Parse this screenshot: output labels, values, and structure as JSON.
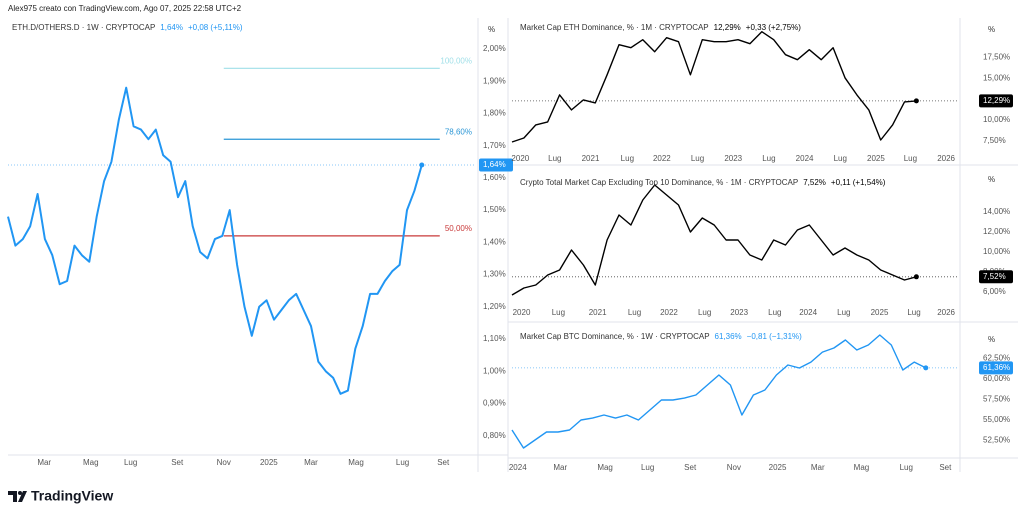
{
  "header": "Alex975 creato con TradingView.com, Ago 07, 2025 22:58 UTC+2",
  "brand": "TradingView",
  "chart_data": [
    {
      "type": "line",
      "legend_symbol": "ETH.D/OTHERS.D · 1W · CRYPTOCAP",
      "legend_value": "1,64%",
      "legend_change": "+0,08 (+5,11%)",
      "color": "#2196f3",
      "y_unit": "%",
      "values": [
        1.48,
        1.39,
        1.41,
        1.45,
        1.55,
        1.41,
        1.36,
        1.27,
        1.28,
        1.39,
        1.36,
        1.34,
        1.48,
        1.59,
        1.65,
        1.78,
        1.88,
        1.76,
        1.75,
        1.72,
        1.75,
        1.67,
        1.65,
        1.54,
        1.59,
        1.45,
        1.37,
        1.35,
        1.41,
        1.42,
        1.5,
        1.33,
        1.2,
        1.11,
        1.2,
        1.22,
        1.16,
        1.19,
        1.22,
        1.24,
        1.19,
        1.14,
        1.03,
        1.0,
        0.98,
        0.93,
        0.94,
        1.07,
        1.14,
        1.24,
        1.24,
        1.28,
        1.31,
        1.33,
        1.5,
        1.56,
        1.64
      ],
      "xlim": [
        0,
        63.2
      ],
      "xticks": [
        {
          "value": 4.9,
          "label": "Mar"
        },
        {
          "value": 11.2,
          "label": "Mag"
        },
        {
          "value": 16.6,
          "label": "Lug"
        },
        {
          "value": 22.9,
          "label": "Set"
        },
        {
          "value": 29.2,
          "label": "Nov"
        },
        {
          "value": 35.3,
          "label": "2025"
        },
        {
          "value": 41,
          "label": "Mar"
        },
        {
          "value": 47.1,
          "label": "Mag"
        },
        {
          "value": 53.4,
          "label": "Lug"
        },
        {
          "value": 58.9,
          "label": "Set"
        }
      ],
      "ylim": [
        0.74,
        2.09
      ],
      "yticks": [
        {
          "value": 2.0,
          "label": "2,00%"
        },
        {
          "value": 1.9,
          "label": "1,90%"
        },
        {
          "value": 1.8,
          "label": "1,80%"
        },
        {
          "value": 1.7,
          "label": "1,70%"
        },
        {
          "value": 1.6,
          "label": "1,60%"
        },
        {
          "value": 1.5,
          "label": "1,50%"
        },
        {
          "value": 1.4,
          "label": "1,40%"
        },
        {
          "value": 1.3,
          "label": "1,30%"
        },
        {
          "value": 1.2,
          "label": "1,20%"
        },
        {
          "value": 1.1,
          "label": "1,10%"
        },
        {
          "value": 1.0,
          "label": "1,00%"
        },
        {
          "value": 0.9,
          "label": "0,90%"
        },
        {
          "value": 0.8,
          "label": "0,80%"
        }
      ],
      "levels": [
        {
          "value": 1.94,
          "label": "100,00%",
          "color": "#9fdfe8"
        },
        {
          "value": 1.72,
          "label": "78,60%",
          "color": "#2a96d6"
        },
        {
          "value": 1.42,
          "label": "50,00%",
          "color": "#c93a3a"
        }
      ],
      "levels_start": 29.2
    },
    {
      "type": "line",
      "legend_symbol": "Market Cap ETH Dominance, % · 1M · CRYPTOCAP",
      "legend_value": "12,29%",
      "legend_change": "+0,33 (+2,75%)",
      "color": "#000000",
      "y_unit": "%",
      "values": [
        7.35,
        7.83,
        9.4,
        9.76,
        13.01,
        11.2,
        12.41,
        12.05,
        15.42,
        19.04,
        18.67,
        19.64,
        18.19,
        19.88,
        19.4,
        15.42,
        19.64,
        19.4,
        19.4,
        19.64,
        19.16,
        20.6,
        19.64,
        17.83,
        17.23,
        18.43,
        17.23,
        18.67,
        15.06,
        13.01,
        11.2,
        7.59,
        9.4,
        12.17,
        12.29
      ],
      "xlim": [
        0,
        37.5
      ],
      "xticks": [
        {
          "value": 0.7,
          "label": "2020"
        },
        {
          "value": 3.6,
          "label": "Lug"
        },
        {
          "value": 6.6,
          "label": "2021"
        },
        {
          "value": 9.7,
          "label": "Lug"
        },
        {
          "value": 12.6,
          "label": "2022"
        },
        {
          "value": 15.6,
          "label": "Lug"
        },
        {
          "value": 18.6,
          "label": "2023"
        },
        {
          "value": 21.6,
          "label": "Lug"
        },
        {
          "value": 24.6,
          "label": "2024"
        },
        {
          "value": 27.6,
          "label": "Lug"
        },
        {
          "value": 30.6,
          "label": "2025"
        },
        {
          "value": 33.5,
          "label": "Lug"
        },
        {
          "value": 36.5,
          "label": "2026"
        }
      ],
      "ylim": [
        6.39,
        22.0
      ],
      "yticks": [
        {
          "value": 17.5,
          "label": "17,50%"
        },
        {
          "value": 15,
          "label": "15,00%"
        },
        {
          "value": 10,
          "label": "10,00%"
        },
        {
          "value": 7.5,
          "label": "7,50%"
        }
      ]
    },
    {
      "type": "line",
      "legend_symbol": "Crypto Total Market Cap Excluding Top 10 Dominance, % · 1M · CRYPTOCAP",
      "legend_value": "7,52%",
      "legend_change": "+0,11 (+1,54%)",
      "color": "#000000",
      "y_unit": "%",
      "values": [
        5.7,
        6.4,
        6.7,
        7.7,
        8.2,
        10.2,
        8.7,
        6.7,
        11.2,
        13.7,
        12.7,
        15.2,
        16.7,
        15.7,
        14.7,
        12.0,
        13.4,
        12.7,
        11.2,
        11.2,
        9.7,
        9.2,
        11.2,
        10.7,
        12.2,
        12.7,
        11.2,
        9.7,
        10.4,
        9.7,
        9.2,
        8.2,
        7.7,
        7.2,
        7.52
      ],
      "xlim": [
        0,
        37.5
      ],
      "xticks": [
        {
          "value": 0.8,
          "label": "2020"
        },
        {
          "value": 3.9,
          "label": "Lug"
        },
        {
          "value": 7.2,
          "label": "2021"
        },
        {
          "value": 10.3,
          "label": "Lug"
        },
        {
          "value": 13.2,
          "label": "2022"
        },
        {
          "value": 16.2,
          "label": "Lug"
        },
        {
          "value": 19.1,
          "label": "2023"
        },
        {
          "value": 22.1,
          "label": "Lug"
        },
        {
          "value": 24.9,
          "label": "2024"
        },
        {
          "value": 27.9,
          "label": "Lug"
        },
        {
          "value": 30.9,
          "label": "2025"
        },
        {
          "value": 33.8,
          "label": "Lug"
        },
        {
          "value": 36.5,
          "label": "2026"
        }
      ],
      "ylim": [
        4.7,
        18.2
      ],
      "yticks": [
        {
          "value": 14,
          "label": "14,00%"
        },
        {
          "value": 12,
          "label": "12,00%"
        },
        {
          "value": 10,
          "label": "10,00%"
        },
        {
          "value": 8,
          "label": "8,00%"
        },
        {
          "value": 6,
          "label": "6,00%"
        }
      ]
    },
    {
      "type": "line",
      "legend_symbol": "Market Cap BTC Dominance, % · 1W · CRYPTOCAP",
      "legend_value": "61,36%",
      "legend_change": "−0,81 (−1,31%)",
      "color": "#2196f3",
      "y_unit": "%",
      "values": [
        53.78,
        51.59,
        52.56,
        53.54,
        53.54,
        53.78,
        55.0,
        55.24,
        55.61,
        55.24,
        55.61,
        55.0,
        56.22,
        57.44,
        57.44,
        57.68,
        58.05,
        59.27,
        60.49,
        59.27,
        55.61,
        58.05,
        58.66,
        60.49,
        61.71,
        61.34,
        62.07,
        63.29,
        63.78,
        64.76,
        63.54,
        64.15,
        65.37,
        64.15,
        61.1,
        62.07,
        61.36
      ],
      "xlim": [
        0,
        38.8
      ],
      "xticks": [
        {
          "value": 0.5,
          "label": "2024"
        },
        {
          "value": 4.2,
          "label": "Mar"
        },
        {
          "value": 8.1,
          "label": "Mag"
        },
        {
          "value": 11.8,
          "label": "Lug"
        },
        {
          "value": 15.5,
          "label": "Set"
        },
        {
          "value": 19.3,
          "label": "Nov"
        },
        {
          "value": 23.1,
          "label": "2025"
        },
        {
          "value": 26.6,
          "label": "Mar"
        },
        {
          "value": 30.4,
          "label": "Mag"
        },
        {
          "value": 34.3,
          "label": "Lug"
        },
        {
          "value": 37.7,
          "label": "Set"
        }
      ],
      "ylim": [
        50.37,
        65.98
      ],
      "yticks": [
        {
          "value": 62.5,
          "label": "62,50%"
        },
        {
          "value": 60,
          "label": "60,00%"
        },
        {
          "value": 57.5,
          "label": "57,50%"
        },
        {
          "value": 55,
          "label": "55,00%"
        },
        {
          "value": 52.5,
          "label": "52,50%"
        }
      ]
    }
  ]
}
